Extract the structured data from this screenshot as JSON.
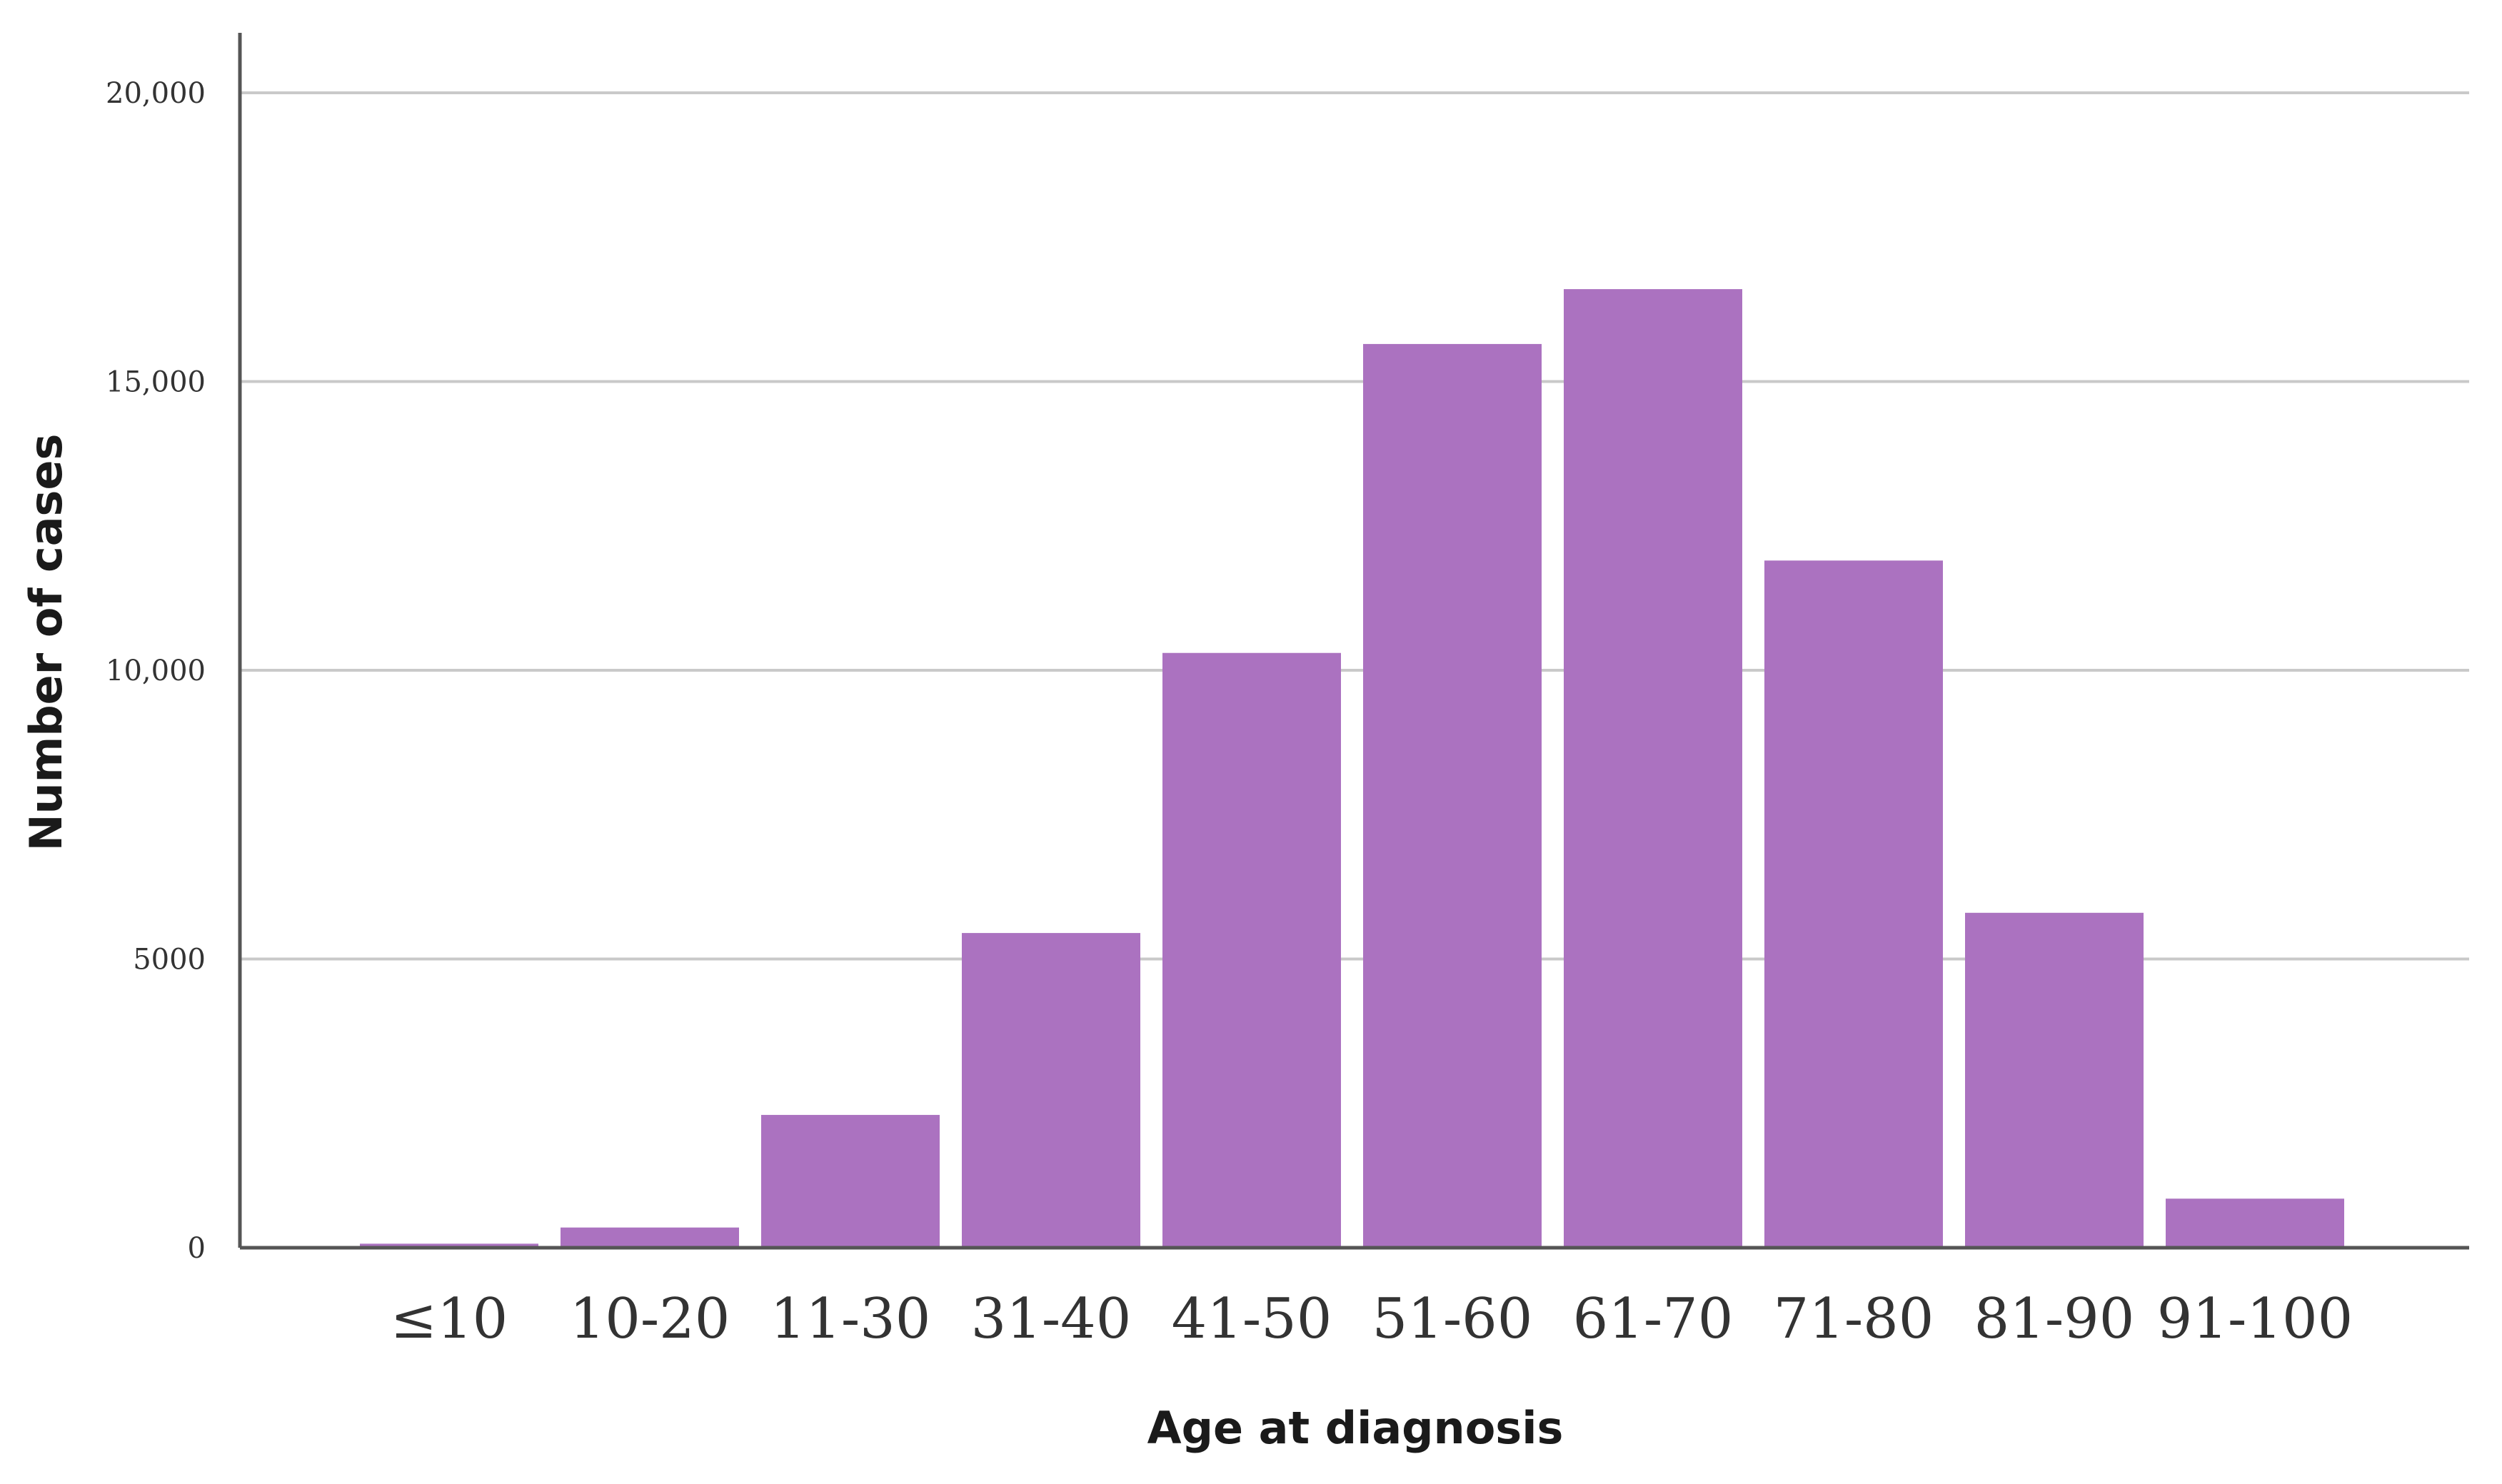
{
  "chart_data": {
    "type": "bar",
    "title": "",
    "xlabel": "Age at diagnosis",
    "ylabel": "Number of cases",
    "categories": [
      "≤10",
      "10-20",
      "11-30",
      "31-40",
      "41-50",
      "51-60",
      "61-70",
      "71-80",
      "81-90",
      "91-100"
    ],
    "values": [
      70,
      350,
      2300,
      5450,
      10300,
      15650,
      16600,
      11900,
      5800,
      850
    ],
    "ylim": [
      0,
      21000
    ],
    "yticks": [
      0,
      5000,
      10000,
      15000,
      20000
    ],
    "ytick_labels": [
      "0",
      "5000",
      "10,000",
      "15,000",
      "20,000"
    ],
    "grid": "horizontal",
    "legend": "none",
    "colors": {
      "bar": "#ab72c0",
      "grid": "#c9c9c9",
      "axis": "#555555"
    }
  }
}
